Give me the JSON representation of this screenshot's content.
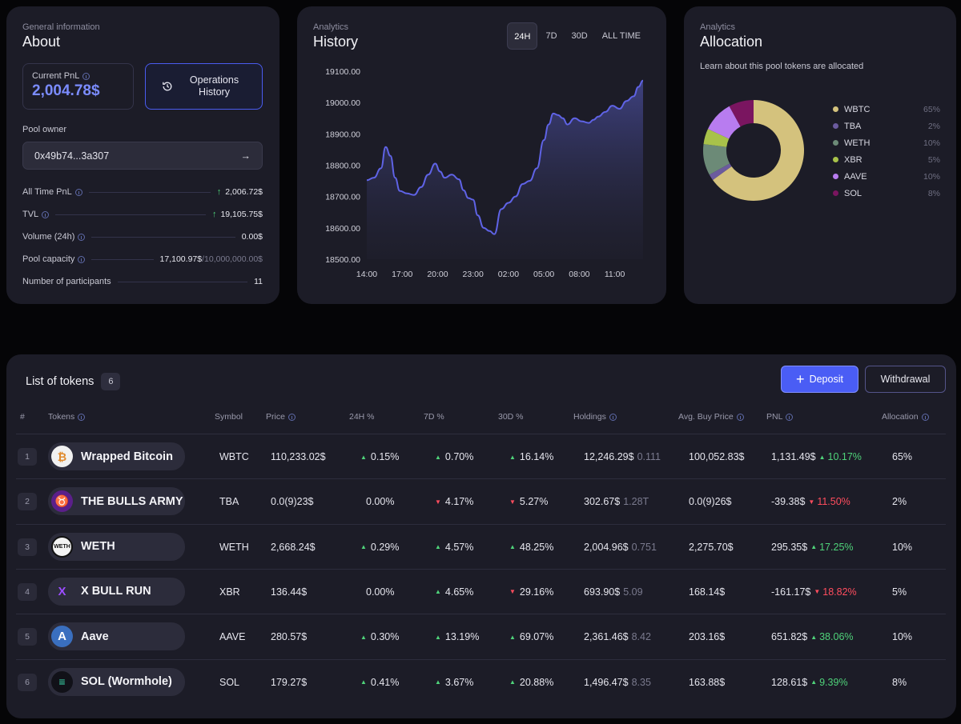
{
  "about": {
    "eyebrow": "General information",
    "title": "About",
    "current_pnl_label": "Current PnL",
    "current_pnl_value": "2,004.78$",
    "operations_button": "Operations History",
    "pool_owner_label": "Pool owner",
    "pool_owner_address": "0x49b74...3a307",
    "stats": [
      {
        "label": "All Time PnL",
        "value": "2,006.72$",
        "arrow": true,
        "info": true
      },
      {
        "label": "TVL",
        "value": "19,105.75$",
        "arrow": true,
        "info": true
      },
      {
        "label": "Volume (24h)",
        "value": "0.00$",
        "arrow": false,
        "info": true
      },
      {
        "label": "Pool capacity",
        "value": "17,100.97$",
        "value_dim": "/10,000,000.00$",
        "arrow": false,
        "info": true
      },
      {
        "label": "Number of participants",
        "value": "11",
        "arrow": false,
        "info": false
      }
    ]
  },
  "history": {
    "eyebrow": "Analytics",
    "title": "History",
    "tabs": [
      "24H",
      "7D",
      "30D",
      "ALL TIME"
    ],
    "active_tab": "24H"
  },
  "chart_data": {
    "type": "area",
    "title": "History",
    "x_ticks": [
      "14:00",
      "17:00",
      "20:00",
      "23:00",
      "02:00",
      "05:00",
      "08:00",
      "11:00"
    ],
    "y_ticks": [
      "19100.00",
      "19000.00",
      "18900.00",
      "18800.00",
      "18700.00",
      "18600.00",
      "18500.00"
    ],
    "ylim": [
      18500,
      19100
    ],
    "x_hours_from_start": [
      0,
      0.6,
      1.2,
      1.6,
      2.0,
      2.4,
      2.8,
      3.4,
      4.0,
      4.6,
      5.2,
      5.8,
      6.2,
      6.6,
      7.2,
      7.8,
      8.2,
      8.6,
      9.0,
      9.4,
      9.9,
      10.4,
      10.8,
      11.4,
      12.0,
      12.6,
      13.2,
      13.8,
      14.4,
      15.0,
      15.4,
      15.8,
      16.2,
      16.6,
      17.0,
      17.6,
      18.2,
      18.8,
      19.2,
      19.6,
      20.2,
      20.8,
      21.4,
      22.0,
      22.6,
      23.0,
      23.4
    ],
    "values": [
      18752,
      18760,
      18790,
      18858,
      18830,
      18760,
      18718,
      18710,
      18705,
      18730,
      18770,
      18805,
      18780,
      18760,
      18770,
      18755,
      18720,
      18695,
      18690,
      18640,
      18600,
      18590,
      18580,
      18660,
      18680,
      18700,
      18740,
      18750,
      18790,
      18880,
      18930,
      18965,
      18960,
      18950,
      18930,
      18950,
      18940,
      18935,
      18945,
      18955,
      18970,
      18990,
      18980,
      19005,
      19020,
      19050,
      19070
    ]
  },
  "allocation": {
    "eyebrow": "Analytics",
    "title": "Allocation",
    "description": "Learn about this pool tokens are allocated",
    "items": [
      {
        "name": "WBTC",
        "pct": "65%",
        "value": 65,
        "color": "#d4c27d"
      },
      {
        "name": "TBA",
        "pct": "2%",
        "value": 2,
        "color": "#6b5b9e"
      },
      {
        "name": "WETH",
        "pct": "10%",
        "value": 10,
        "color": "#6c8a77"
      },
      {
        "name": "XBR",
        "pct": "5%",
        "value": 5,
        "color": "#a8c24a"
      },
      {
        "name": "AAVE",
        "pct": "10%",
        "value": 10,
        "color": "#b87cf0"
      },
      {
        "name": "SOL",
        "pct": "8%",
        "value": 8,
        "color": "#7a1560"
      }
    ]
  },
  "tokens": {
    "title": "List of tokens",
    "count": "6",
    "deposit_label": "Deposit",
    "withdraw_label": "Withdrawal",
    "headers": {
      "rank": "#",
      "token": "Tokens",
      "symbol": "Symbol",
      "price": "Price",
      "d24": "24H %",
      "d7": "7D %",
      "d30": "30D %",
      "holdings": "Holdings",
      "avg": "Avg. Buy Price",
      "pnl": "PNL",
      "alloc": "Allocation"
    },
    "rows": [
      {
        "rank": "1",
        "name": "Wrapped Bitcoin",
        "icon": "bitcoin-icon",
        "icon_char": "₿",
        "icon_bg": "#f1f1f1",
        "icon_fg": "#e08a2c",
        "symbol": "WBTC",
        "price": "110,233.02$",
        "d24": "0.15%",
        "d24_dir": "up",
        "d7": "0.70%",
        "d7_dir": "up",
        "d30": "16.14%",
        "d30_dir": "up",
        "holdings": "12,246.29$",
        "holdings_amt": "0.111",
        "avg": "100,052.83$",
        "pnl": "1,131.49$",
        "pnl_pct": "10.17%",
        "pnl_dir": "up",
        "alloc": "65%"
      },
      {
        "rank": "2",
        "name": "THE BULLS ARMY",
        "icon": "bull-army-icon",
        "icon_char": "♉",
        "icon_bg": "#5b1f8a",
        "icon_fg": "#e070ff",
        "symbol": "TBA",
        "price": "0.0(9)23$",
        "d24": "0.00%",
        "d24_dir": "none",
        "d7": "4.17%",
        "d7_dir": "down",
        "d30": "5.27%",
        "d30_dir": "down",
        "holdings": "302.67$",
        "holdings_amt": "1.28T",
        "avg": "0.0(9)26$",
        "pnl": "-39.38$",
        "pnl_pct": "11.50%",
        "pnl_dir": "down",
        "alloc": "2%"
      },
      {
        "rank": "3",
        "name": "WETH",
        "icon": "weth-icon",
        "icon_char": "WETH",
        "icon_bg": "#f4f4f4",
        "icon_fg": "#111",
        "symbol": "WETH",
        "price": "2,668.24$",
        "d24": "0.29%",
        "d24_dir": "up",
        "d7": "4.57%",
        "d7_dir": "up",
        "d30": "48.25%",
        "d30_dir": "up",
        "holdings": "2,004.96$",
        "holdings_amt": "0.751",
        "avg": "2,275.70$",
        "pnl": "295.35$",
        "pnl_pct": "17.25%",
        "pnl_dir": "up",
        "alloc": "10%"
      },
      {
        "rank": "4",
        "name": "X BULL RUN",
        "icon": "x-bull-run-icon",
        "icon_char": "X",
        "icon_bg": "#2c2c3b",
        "icon_fg": "#9b4dff",
        "symbol": "XBR",
        "price": "136.44$",
        "d24": "0.00%",
        "d24_dir": "none",
        "d7": "4.65%",
        "d7_dir": "up",
        "d30": "29.16%",
        "d30_dir": "down",
        "holdings": "693.90$",
        "holdings_amt": "5.09",
        "avg": "168.14$",
        "pnl": "-161.17$",
        "pnl_pct": "18.82%",
        "pnl_dir": "down",
        "alloc": "5%"
      },
      {
        "rank": "5",
        "name": "Aave",
        "icon": "aave-icon",
        "icon_char": "A",
        "icon_bg": "#3a6fbf",
        "icon_fg": "#ffffff",
        "symbol": "AAVE",
        "price": "280.57$",
        "d24": "0.30%",
        "d24_dir": "up",
        "d7": "13.19%",
        "d7_dir": "up",
        "d30": "69.07%",
        "d30_dir": "up",
        "holdings": "2,361.46$",
        "holdings_amt": "8.42",
        "avg": "203.16$",
        "pnl": "651.82$",
        "pnl_pct": "38.06%",
        "pnl_dir": "up",
        "alloc": "10%"
      },
      {
        "rank": "6",
        "name": "SOL (Wormhole)",
        "icon": "sol-wormhole-icon",
        "icon_char": "≡",
        "icon_bg": "#111118",
        "icon_fg": "#3be0b0",
        "symbol": "SOL",
        "price": "179.27$",
        "d24": "0.41%",
        "d24_dir": "up",
        "d7": "3.67%",
        "d7_dir": "up",
        "d30": "20.88%",
        "d30_dir": "up",
        "holdings": "1,496.47$",
        "holdings_amt": "8.35",
        "avg": "163.88$",
        "pnl": "128.61$",
        "pnl_pct": "9.39%",
        "pnl_dir": "up",
        "alloc": "8%"
      }
    ]
  }
}
